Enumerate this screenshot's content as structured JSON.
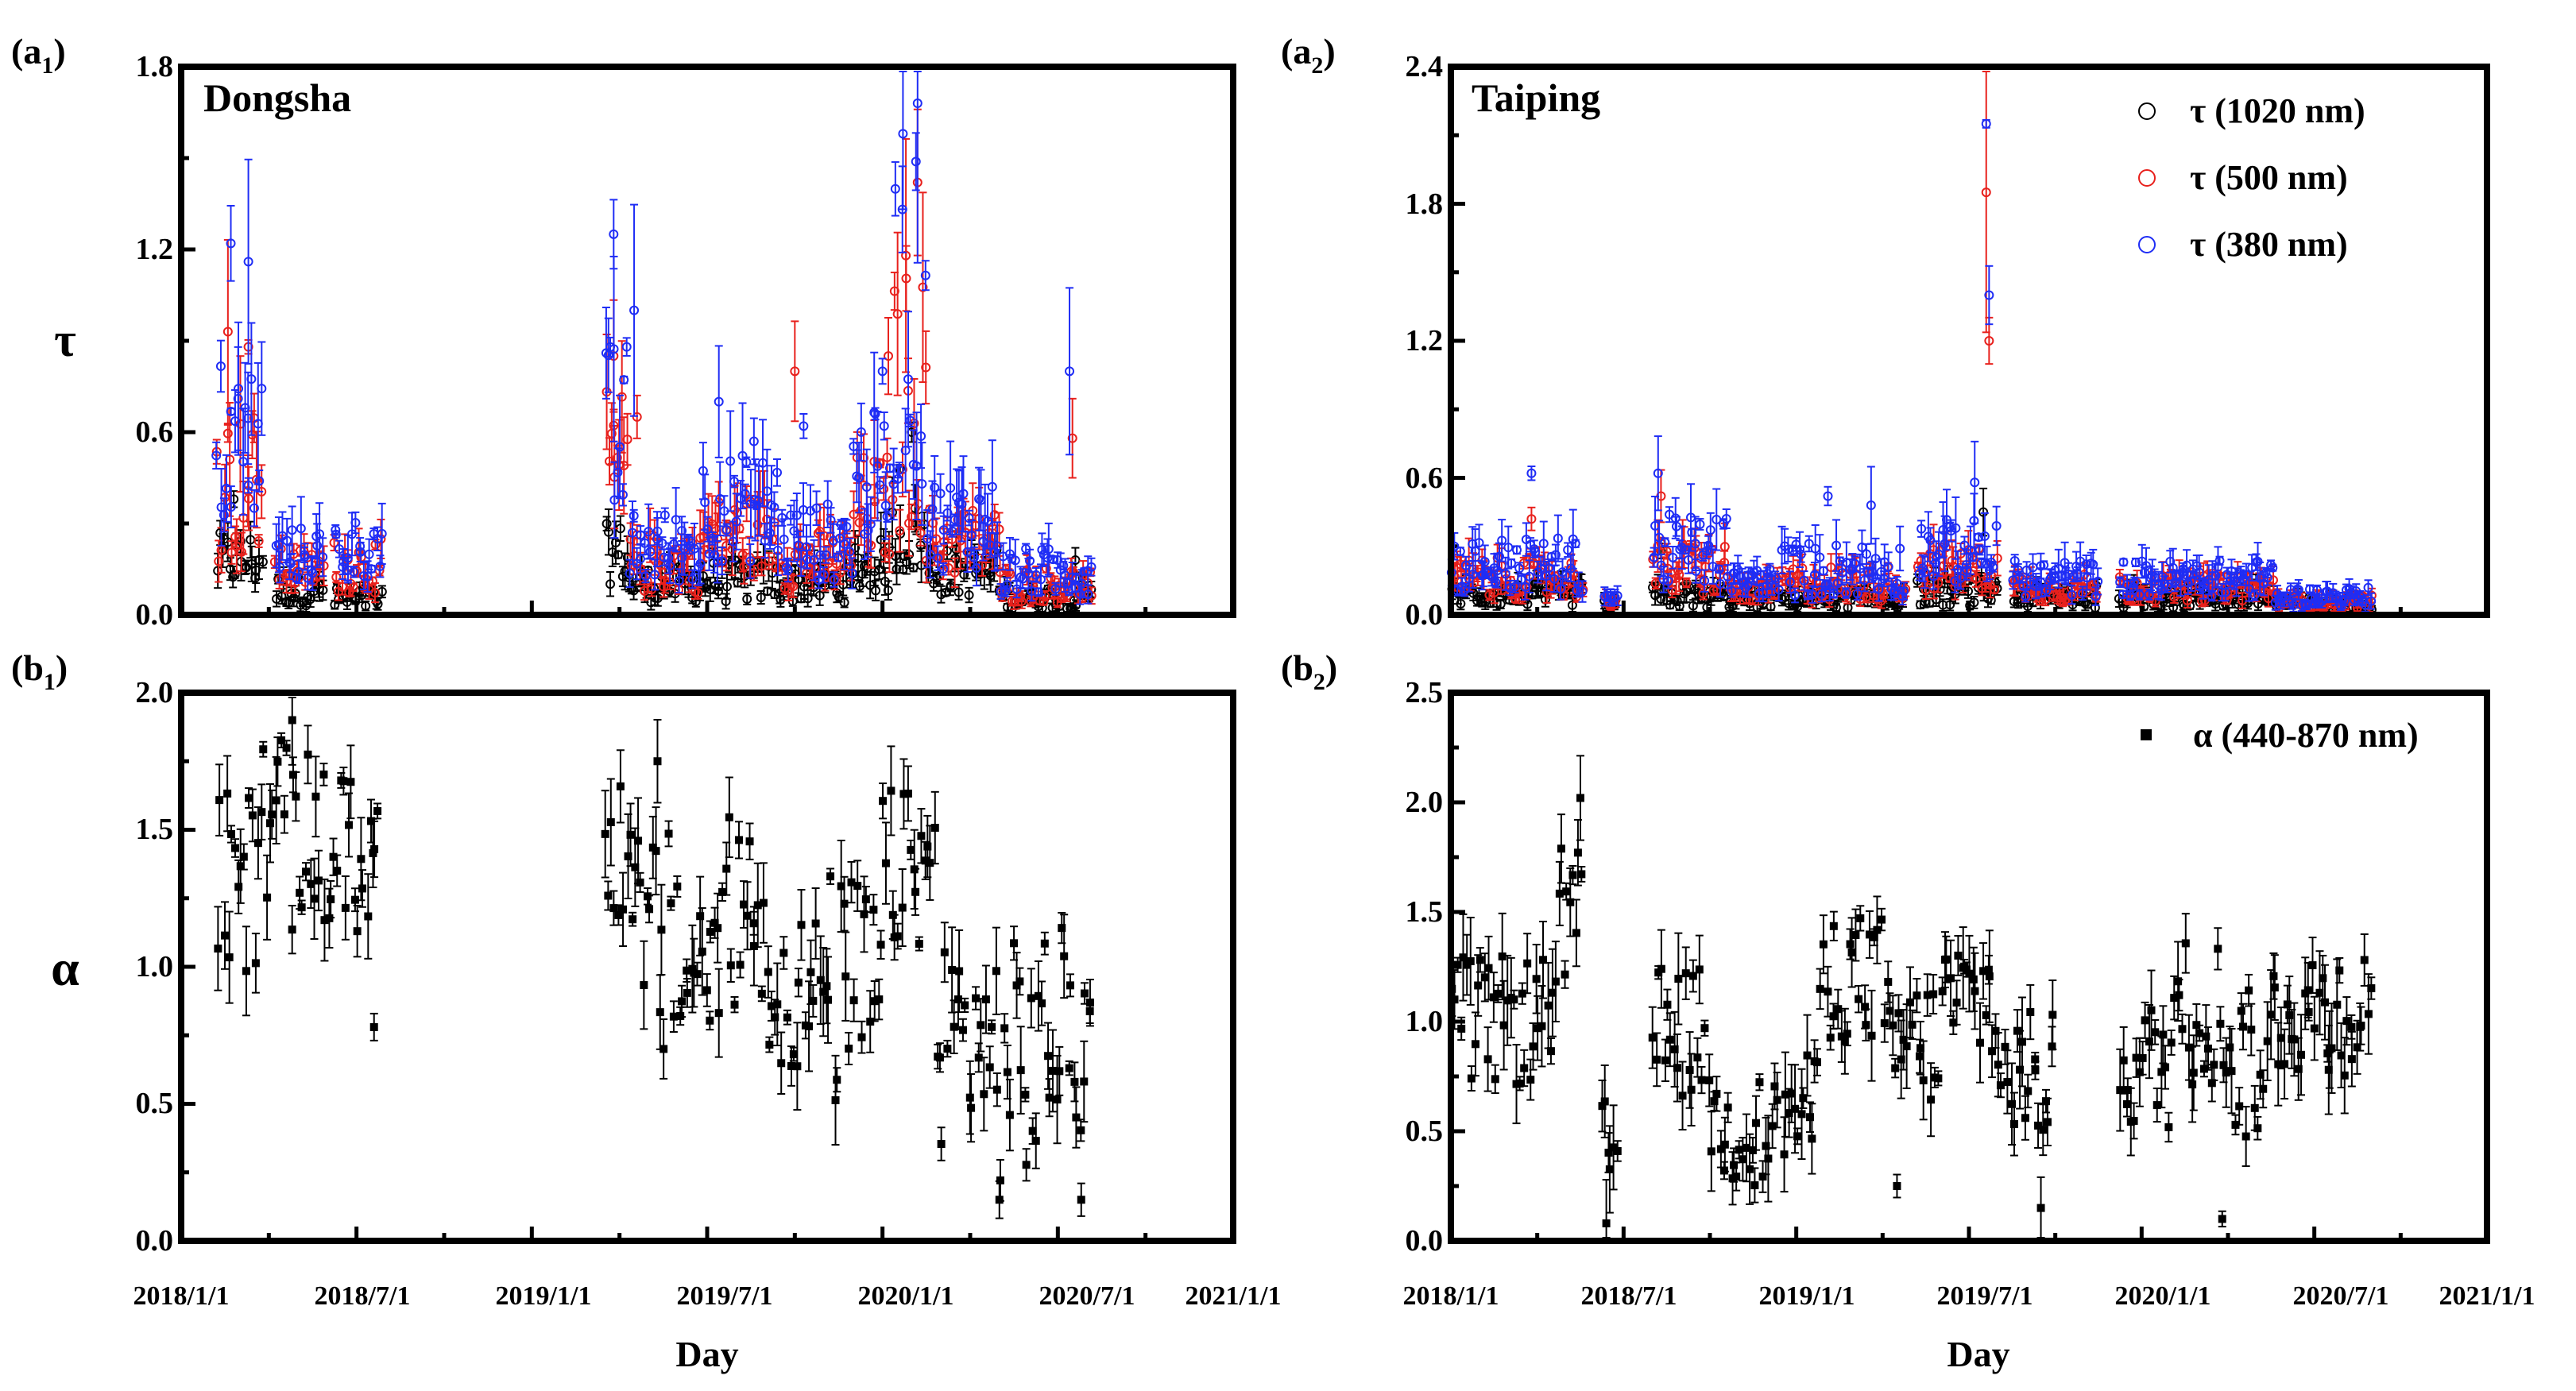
{
  "figure": {
    "xlabel": "Day",
    "x_ticks": [
      "2018/1/1",
      "2018/7/1",
      "2019/1/1",
      "2019/7/1",
      "2020/1/1",
      "2020/7/1",
      "2021/1/1"
    ]
  },
  "chart_data": [
    {
      "id": "a1",
      "type": "scatter",
      "panel_label": "(a",
      "panel_sub": "1",
      "panel_close": ")",
      "title": "Dongsha",
      "ylabel": "τ",
      "xlim": [
        0,
        36
      ],
      "ylim": [
        0,
        1.8
      ],
      "yticks": [
        "0.0",
        "0.6",
        "1.2",
        "1.8"
      ],
      "series": [
        {
          "name": "τ (1020 nm)",
          "color": "#000000",
          "segments": [
            [
              1.2,
              2.8,
              0.18,
              0.09
            ],
            [
              3.2,
              4.9,
              0.08,
              0.05
            ],
            [
              5.2,
              6.9,
              0.05,
              0.04
            ],
            [
              14.5,
              15.3,
              0.2,
              0.1
            ],
            [
              15.3,
              17.8,
              0.1,
              0.06
            ],
            [
              17.8,
              20.5,
              0.11,
              0.07
            ],
            [
              20.5,
              23.0,
              0.1,
              0.06
            ],
            [
              23.0,
              24.3,
              0.16,
              0.09
            ],
            [
              24.3,
              25.5,
              0.25,
              0.12
            ],
            [
              25.5,
              28.0,
              0.14,
              0.08
            ],
            [
              28.0,
              31.2,
              0.06,
              0.04
            ]
          ],
          "peaks": [
            [
              1.8,
              0.38
            ],
            [
              24.6,
              0.48
            ],
            [
              25.0,
              0.6
            ],
            [
              30.6,
              0.18
            ]
          ]
        },
        {
          "name": "τ (500 nm)",
          "color": "#e8201c",
          "segments": [
            [
              1.2,
              2.8,
              0.42,
              0.25
            ],
            [
              3.2,
              4.9,
              0.15,
              0.07
            ],
            [
              5.2,
              6.9,
              0.16,
              0.09
            ],
            [
              14.5,
              15.3,
              0.45,
              0.3
            ],
            [
              15.3,
              17.8,
              0.17,
              0.1
            ],
            [
              17.8,
              20.5,
              0.26,
              0.13
            ],
            [
              20.5,
              23.0,
              0.18,
              0.1
            ],
            [
              23.0,
              24.3,
              0.35,
              0.18
            ],
            [
              24.3,
              25.5,
              0.7,
              0.45
            ],
            [
              25.5,
              28.0,
              0.24,
              0.12
            ],
            [
              28.0,
              31.2,
              0.1,
              0.06
            ]
          ],
          "peaks": [
            [
              1.6,
              0.93
            ],
            [
              2.3,
              0.88
            ],
            [
              14.8,
              0.85
            ],
            [
              15.6,
              0.65
            ],
            [
              21.0,
              0.8
            ],
            [
              24.2,
              0.85
            ],
            [
              24.8,
              1.18
            ],
            [
              25.2,
              1.42
            ],
            [
              30.5,
              0.58
            ]
          ]
        },
        {
          "name": "τ (380 nm)",
          "color": "#1f2df5",
          "segments": [
            [
              1.2,
              2.8,
              0.55,
              0.3
            ],
            [
              3.2,
              4.9,
              0.2,
              0.09
            ],
            [
              5.2,
              6.9,
              0.22,
              0.1
            ],
            [
              14.5,
              15.3,
              0.55,
              0.35
            ],
            [
              15.3,
              17.8,
              0.22,
              0.12
            ],
            [
              17.8,
              20.5,
              0.35,
              0.18
            ],
            [
              20.5,
              23.0,
              0.24,
              0.13
            ],
            [
              23.0,
              24.3,
              0.45,
              0.22
            ],
            [
              24.3,
              25.5,
              0.95,
              0.55
            ],
            [
              25.5,
              28.0,
              0.3,
              0.15
            ],
            [
              28.0,
              31.2,
              0.14,
              0.08
            ]
          ],
          "peaks": [
            [
              1.7,
              1.22
            ],
            [
              2.3,
              1.16
            ],
            [
              14.8,
              1.25
            ],
            [
              15.5,
              1.0
            ],
            [
              18.4,
              0.7
            ],
            [
              19.6,
              0.57
            ],
            [
              21.3,
              0.62
            ],
            [
              24.0,
              0.8
            ],
            [
              24.7,
              1.58
            ],
            [
              25.2,
              1.68
            ],
            [
              30.4,
              0.8
            ]
          ]
        }
      ]
    },
    {
      "id": "a2",
      "type": "scatter",
      "panel_label": "(a",
      "panel_sub": "2",
      "panel_close": ")",
      "title": "Taiping",
      "ylabel": "",
      "xlim": [
        0,
        36
      ],
      "ylim": [
        0,
        2.4
      ],
      "yticks": [
        "0.0",
        "0.6",
        "1.2",
        "1.8",
        "2.4"
      ],
      "series": [
        {
          "name": "τ (1020 nm)",
          "color": "#000000",
          "segments": [
            [
              0.0,
              4.6,
              0.09,
              0.05
            ],
            [
              5.3,
              5.8,
              0.05,
              0.02
            ],
            [
              7.0,
              9.6,
              0.08,
              0.05
            ],
            [
              9.6,
              11.4,
              0.07,
              0.04
            ],
            [
              11.5,
              15.8,
              0.07,
              0.04
            ],
            [
              16.2,
              19.0,
              0.1,
              0.06
            ],
            [
              19.5,
              22.5,
              0.08,
              0.05
            ],
            [
              23.2,
              28.6,
              0.08,
              0.05
            ],
            [
              28.6,
              32.0,
              0.05,
              0.03
            ]
          ],
          "peaks": [
            [
              7.3,
              0.28
            ],
            [
              18.5,
              0.45
            ]
          ]
        },
        {
          "name": "τ (500 nm)",
          "color": "#e8201c",
          "segments": [
            [
              0.0,
              4.6,
              0.16,
              0.09
            ],
            [
              5.3,
              5.8,
              0.06,
              0.02
            ],
            [
              7.0,
              9.6,
              0.2,
              0.12
            ],
            [
              9.6,
              11.4,
              0.11,
              0.05
            ],
            [
              11.5,
              15.8,
              0.14,
              0.08
            ],
            [
              16.2,
              19.0,
              0.2,
              0.1
            ],
            [
              19.5,
              22.5,
              0.12,
              0.06
            ],
            [
              23.2,
              28.6,
              0.12,
              0.06
            ],
            [
              28.6,
              32.0,
              0.06,
              0.03
            ]
          ],
          "peaks": [
            [
              2.8,
              0.42
            ],
            [
              7.3,
              0.52
            ],
            [
              18.6,
              1.85
            ],
            [
              18.7,
              1.2
            ]
          ]
        },
        {
          "name": "τ (380 nm)",
          "color": "#1f2df5",
          "segments": [
            [
              0.0,
              4.6,
              0.22,
              0.12
            ],
            [
              5.3,
              5.8,
              0.08,
              0.02
            ],
            [
              7.0,
              9.6,
              0.28,
              0.16
            ],
            [
              9.6,
              11.4,
              0.15,
              0.06
            ],
            [
              11.5,
              15.8,
              0.2,
              0.12
            ],
            [
              16.2,
              19.0,
              0.28,
              0.14
            ],
            [
              19.5,
              22.5,
              0.16,
              0.08
            ],
            [
              23.2,
              28.6,
              0.16,
              0.08
            ],
            [
              28.6,
              32.0,
              0.08,
              0.04
            ]
          ],
          "peaks": [
            [
              2.8,
              0.62
            ],
            [
              7.2,
              0.62
            ],
            [
              13.1,
              0.52
            ],
            [
              14.6,
              0.48
            ],
            [
              18.2,
              0.58
            ],
            [
              18.6,
              2.15
            ],
            [
              18.7,
              1.4
            ]
          ]
        }
      ]
    },
    {
      "id": "b1",
      "type": "scatter",
      "panel_label": "(b",
      "panel_sub": "1",
      "panel_close": ")",
      "title": "",
      "ylabel": "α",
      "xlim": [
        0,
        36
      ],
      "ylim": [
        0,
        2.0
      ],
      "yticks": [
        "0.0",
        "0.5",
        "1.0",
        "1.5",
        "2.0"
      ],
      "series": [
        {
          "name": "α (440-870 nm)",
          "color": "#000000",
          "segments": [
            [
              1.2,
              2.6,
              1.3,
              0.35
            ],
            [
              2.6,
              3.6,
              1.55,
              0.3
            ],
            [
              3.6,
              5.0,
              1.45,
              0.35
            ],
            [
              5.0,
              6.8,
              1.4,
              0.3
            ],
            [
              14.5,
              15.5,
              1.45,
              0.3
            ],
            [
              15.5,
              17.0,
              1.05,
              0.45
            ],
            [
              17.0,
              18.5,
              1.0,
              0.35
            ],
            [
              18.5,
              20.0,
              1.2,
              0.35
            ],
            [
              20.0,
              22.0,
              0.9,
              0.3
            ],
            [
              22.0,
              24.0,
              0.9,
              0.45
            ],
            [
              24.0,
              25.8,
              1.35,
              0.3
            ],
            [
              25.8,
              27.5,
              0.75,
              0.4
            ],
            [
              27.5,
              29.5,
              0.65,
              0.45
            ],
            [
              29.5,
              31.2,
              0.75,
              0.4
            ]
          ],
          "peaks": [
            [
              3.8,
              1.9
            ],
            [
              6.6,
              0.78
            ],
            [
              16.3,
              1.75
            ],
            [
              28.0,
              0.15
            ],
            [
              30.8,
              0.15
            ]
          ]
        }
      ]
    },
    {
      "id": "b2",
      "type": "scatter",
      "panel_label": "(b",
      "panel_sub": "2",
      "panel_close": ")",
      "title": "",
      "ylabel": "",
      "xlim": [
        0,
        36
      ],
      "ylim": [
        0,
        2.5
      ],
      "yticks": [
        "0.0",
        "0.5",
        "1.0",
        "1.5",
        "2.0",
        "2.5"
      ],
      "series": [
        {
          "name": "α (440-870 nm)",
          "color": "#000000",
          "segments": [
            [
              0.0,
              2.0,
              1.0,
              0.3
            ],
            [
              2.0,
              3.5,
              1.0,
              0.3
            ],
            [
              3.5,
              4.6,
              1.45,
              0.35
            ],
            [
              5.2,
              5.8,
              0.4,
              0.25
            ],
            [
              7.0,
              9.0,
              0.95,
              0.3
            ],
            [
              9.0,
              11.4,
              0.5,
              0.25
            ],
            [
              11.5,
              12.8,
              0.6,
              0.25
            ],
            [
              12.8,
              15.0,
              1.2,
              0.3
            ],
            [
              15.0,
              17.0,
              0.9,
              0.3
            ],
            [
              17.0,
              19.0,
              1.1,
              0.3
            ],
            [
              19.0,
              21.0,
              0.75,
              0.3
            ],
            [
              23.2,
              25.0,
              0.8,
              0.3
            ],
            [
              25.0,
              27.0,
              1.05,
              0.35
            ],
            [
              27.0,
              28.5,
              0.8,
              0.35
            ],
            [
              28.5,
              32.0,
              1.05,
              0.3
            ]
          ],
          "peaks": [
            [
              4.5,
              2.02
            ],
            [
              5.4,
              0.08
            ],
            [
              15.5,
              0.25
            ],
            [
              20.5,
              0.15
            ],
            [
              26.8,
              0.1
            ],
            [
              30.5,
              0.78
            ]
          ]
        }
      ]
    }
  ]
}
